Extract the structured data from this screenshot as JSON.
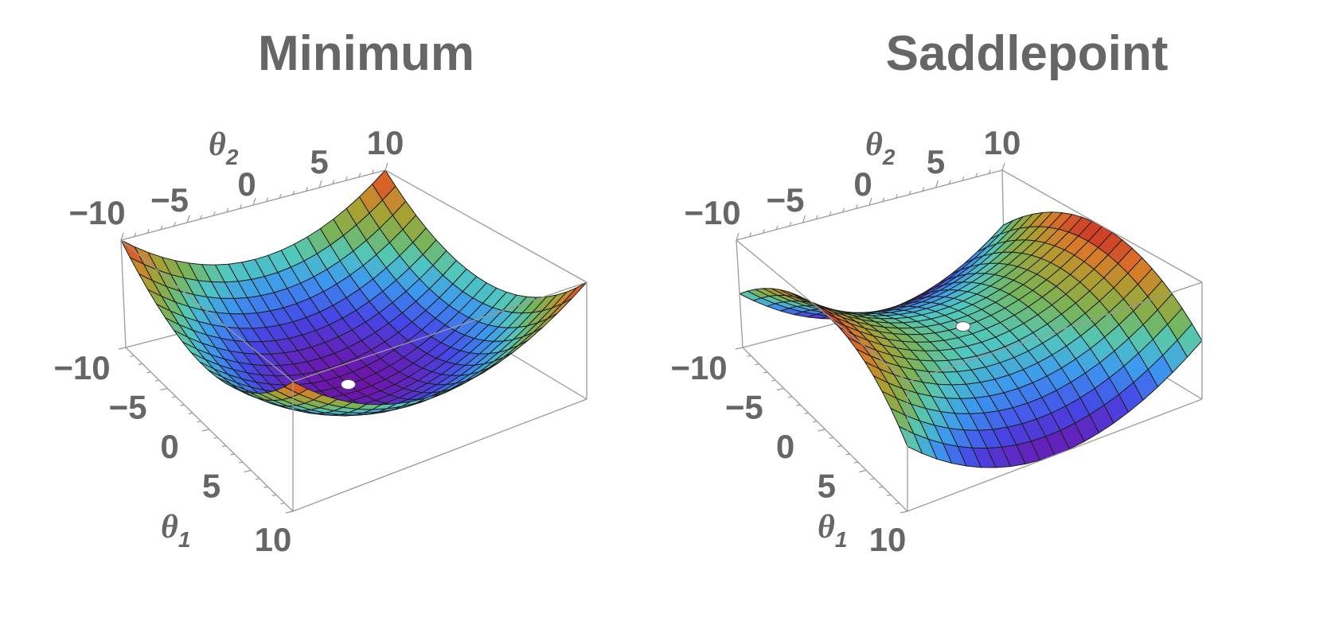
{
  "chart_data": [
    {
      "type": "surface3d",
      "title": "Minimum",
      "function": "z = theta1^2 + theta2^2",
      "xlabel": "θ",
      "xlabel_sub": "1",
      "ylabel": "θ",
      "ylabel_sub": "2",
      "xlim": [
        -10,
        10
      ],
      "ylim": [
        -10,
        10
      ],
      "zlim": [
        0,
        200
      ],
      "x_ticks": [
        "−10",
        "−5",
        "0",
        "5",
        "10"
      ],
      "y_ticks": [
        "−10",
        "−5",
        "0",
        "5",
        "10"
      ],
      "grid_divisions": 20,
      "critical_point": {
        "theta1": 0,
        "theta2": 0,
        "z": 0
      },
      "colormap": "rainbow (purple low → red high)"
    },
    {
      "type": "surface3d",
      "title": "Saddlepoint",
      "function": "z = theta2^2 - theta1^2",
      "xlabel": "θ",
      "xlabel_sub": "1",
      "ylabel": "θ",
      "ylabel_sub": "2",
      "xlim": [
        -10,
        10
      ],
      "ylim": [
        -10,
        10
      ],
      "zlim": [
        -100,
        100
      ],
      "x_ticks": [
        "−10",
        "−5",
        "0",
        "5",
        "10"
      ],
      "y_ticks": [
        "−10",
        "−5",
        "0",
        "5",
        "10"
      ],
      "grid_divisions": 20,
      "critical_point": {
        "theta1": 0,
        "theta2": 0,
        "z": 0
      },
      "colormap": "rainbow (purple low → red high)"
    }
  ],
  "colors": {
    "text": "#666666",
    "box": "#9a9a9a",
    "mesh": "#1e1e1e"
  }
}
